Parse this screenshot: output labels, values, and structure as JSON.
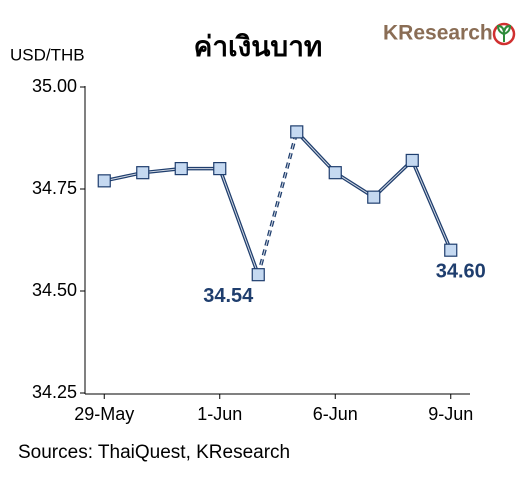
{
  "chart_data": {
    "type": "line",
    "title": "ค่าเงินบาท",
    "logo": "KResearch",
    "y_axis_label": "USD/THB",
    "source": "Sources: ThaiQuest, KResearch",
    "categories": [
      "29-May",
      null,
      null,
      "1-Jun",
      null,
      null,
      "6-Jun",
      null,
      null,
      "9-Jun"
    ],
    "series": [
      {
        "name": "USD/THB",
        "color": "#1f3e6e",
        "marker_color": "#c5d9f1",
        "values": [
          34.77,
          34.79,
          34.8,
          34.8,
          34.54,
          34.89,
          34.79,
          34.73,
          34.82,
          34.6
        ],
        "value_labels": [
          null,
          null,
          null,
          null,
          "34.54",
          null,
          null,
          null,
          null,
          "34.60"
        ],
        "dashed_segments": [
          4
        ]
      }
    ],
    "ylim": [
      34.25,
      35.0
    ],
    "yticks": [
      {
        "value": 34.25,
        "label": "34.25"
      },
      {
        "value": 34.5,
        "label": "34.50"
      },
      {
        "value": 34.75,
        "label": "34.75"
      },
      {
        "value": 35,
        "label": "35.00"
      }
    ],
    "grid": false
  }
}
